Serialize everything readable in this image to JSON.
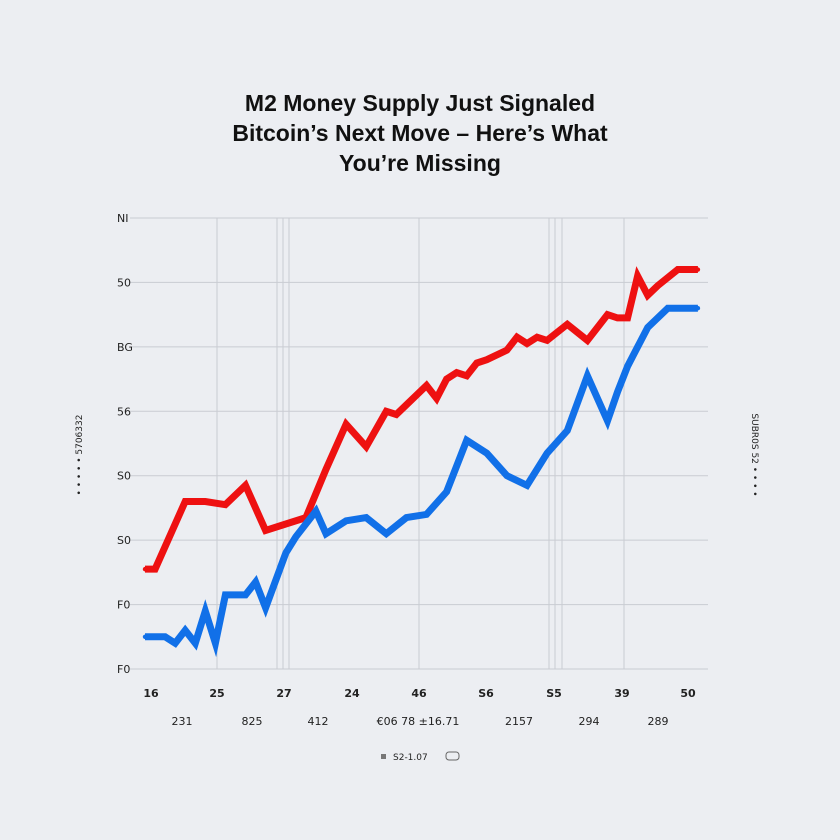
{
  "title_lines": [
    "M2 Money Supply Just Signaled",
    "Bitcoin’s Next Move – Here’s What",
    "You’re Missing"
  ],
  "colors": {
    "background": "#eceef2",
    "grid": "#c9ccd2",
    "red_series": "#ee1111",
    "blue_series": "#1170e8"
  },
  "chart_data": {
    "type": "line",
    "title": "M2 Money Supply Just Signaled Bitcoin’s Next Move – Here’s What You’re Missing",
    "y_tick_labels": [
      "NI",
      "50",
      "BG",
      "56",
      "S0",
      "S0",
      "F0",
      "F0"
    ],
    "x_tick_labels": [
      "16",
      "25",
      "27",
      "24",
      "46",
      "S6",
      "S5",
      "39",
      "50"
    ],
    "x_sub_labels": [
      "231",
      "825",
      "412",
      "€06 78 ±16.71",
      "2157",
      "294",
      "289"
    ],
    "left_axis_label": "• • • • • 5706332",
    "right_axis_label": "SUBR0S 52 • • • •",
    "legend_text": "S2-1.07",
    "grid": true,
    "ylim": [
      0,
      7
    ],
    "xlim": [
      0,
      28
    ],
    "series": [
      {
        "color": "#ee1111",
        "x": [
          0,
          0.5,
          2,
          3,
          4,
          5,
          6,
          7,
          8,
          9,
          10,
          11,
          12,
          12.5,
          13,
          14,
          14.5,
          15,
          15.5,
          16,
          16.5,
          17,
          18,
          18.5,
          19,
          19.5,
          20,
          21,
          22,
          23,
          23.5,
          24,
          24.5,
          25,
          25.5,
          26.5,
          27.5
        ],
        "y": [
          1.55,
          1.55,
          2.6,
          2.6,
          2.55,
          2.85,
          2.15,
          2.25,
          2.35,
          3.1,
          3.8,
          3.45,
          4.0,
          3.95,
          4.1,
          4.4,
          4.2,
          4.5,
          4.6,
          4.55,
          4.75,
          4.8,
          4.95,
          5.15,
          5.05,
          5.15,
          5.1,
          5.35,
          5.1,
          5.5,
          5.45,
          5.45,
          6.1,
          5.8,
          5.95,
          6.2,
          6.2
        ]
      },
      {
        "color": "#1170e8",
        "x": [
          0,
          0.5,
          1,
          1.5,
          2,
          2.5,
          3,
          3.5,
          4,
          4.5,
          5,
          5.5,
          6,
          7,
          7.5,
          8.5,
          9,
          10,
          11,
          12,
          13,
          14,
          15,
          16,
          17,
          18,
          19,
          20,
          21,
          22,
          23,
          23.5,
          24,
          25,
          26,
          27.5
        ],
        "y": [
          0.5,
          0.5,
          0.5,
          0.4,
          0.6,
          0.4,
          0.9,
          0.4,
          1.15,
          1.15,
          1.15,
          1.35,
          0.95,
          1.8,
          2.05,
          2.45,
          2.1,
          2.3,
          2.35,
          2.1,
          2.35,
          2.4,
          2.75,
          3.55,
          3.35,
          3.0,
          2.85,
          3.35,
          3.7,
          4.55,
          3.85,
          4.3,
          4.7,
          5.3,
          5.6,
          5.6
        ]
      }
    ]
  }
}
